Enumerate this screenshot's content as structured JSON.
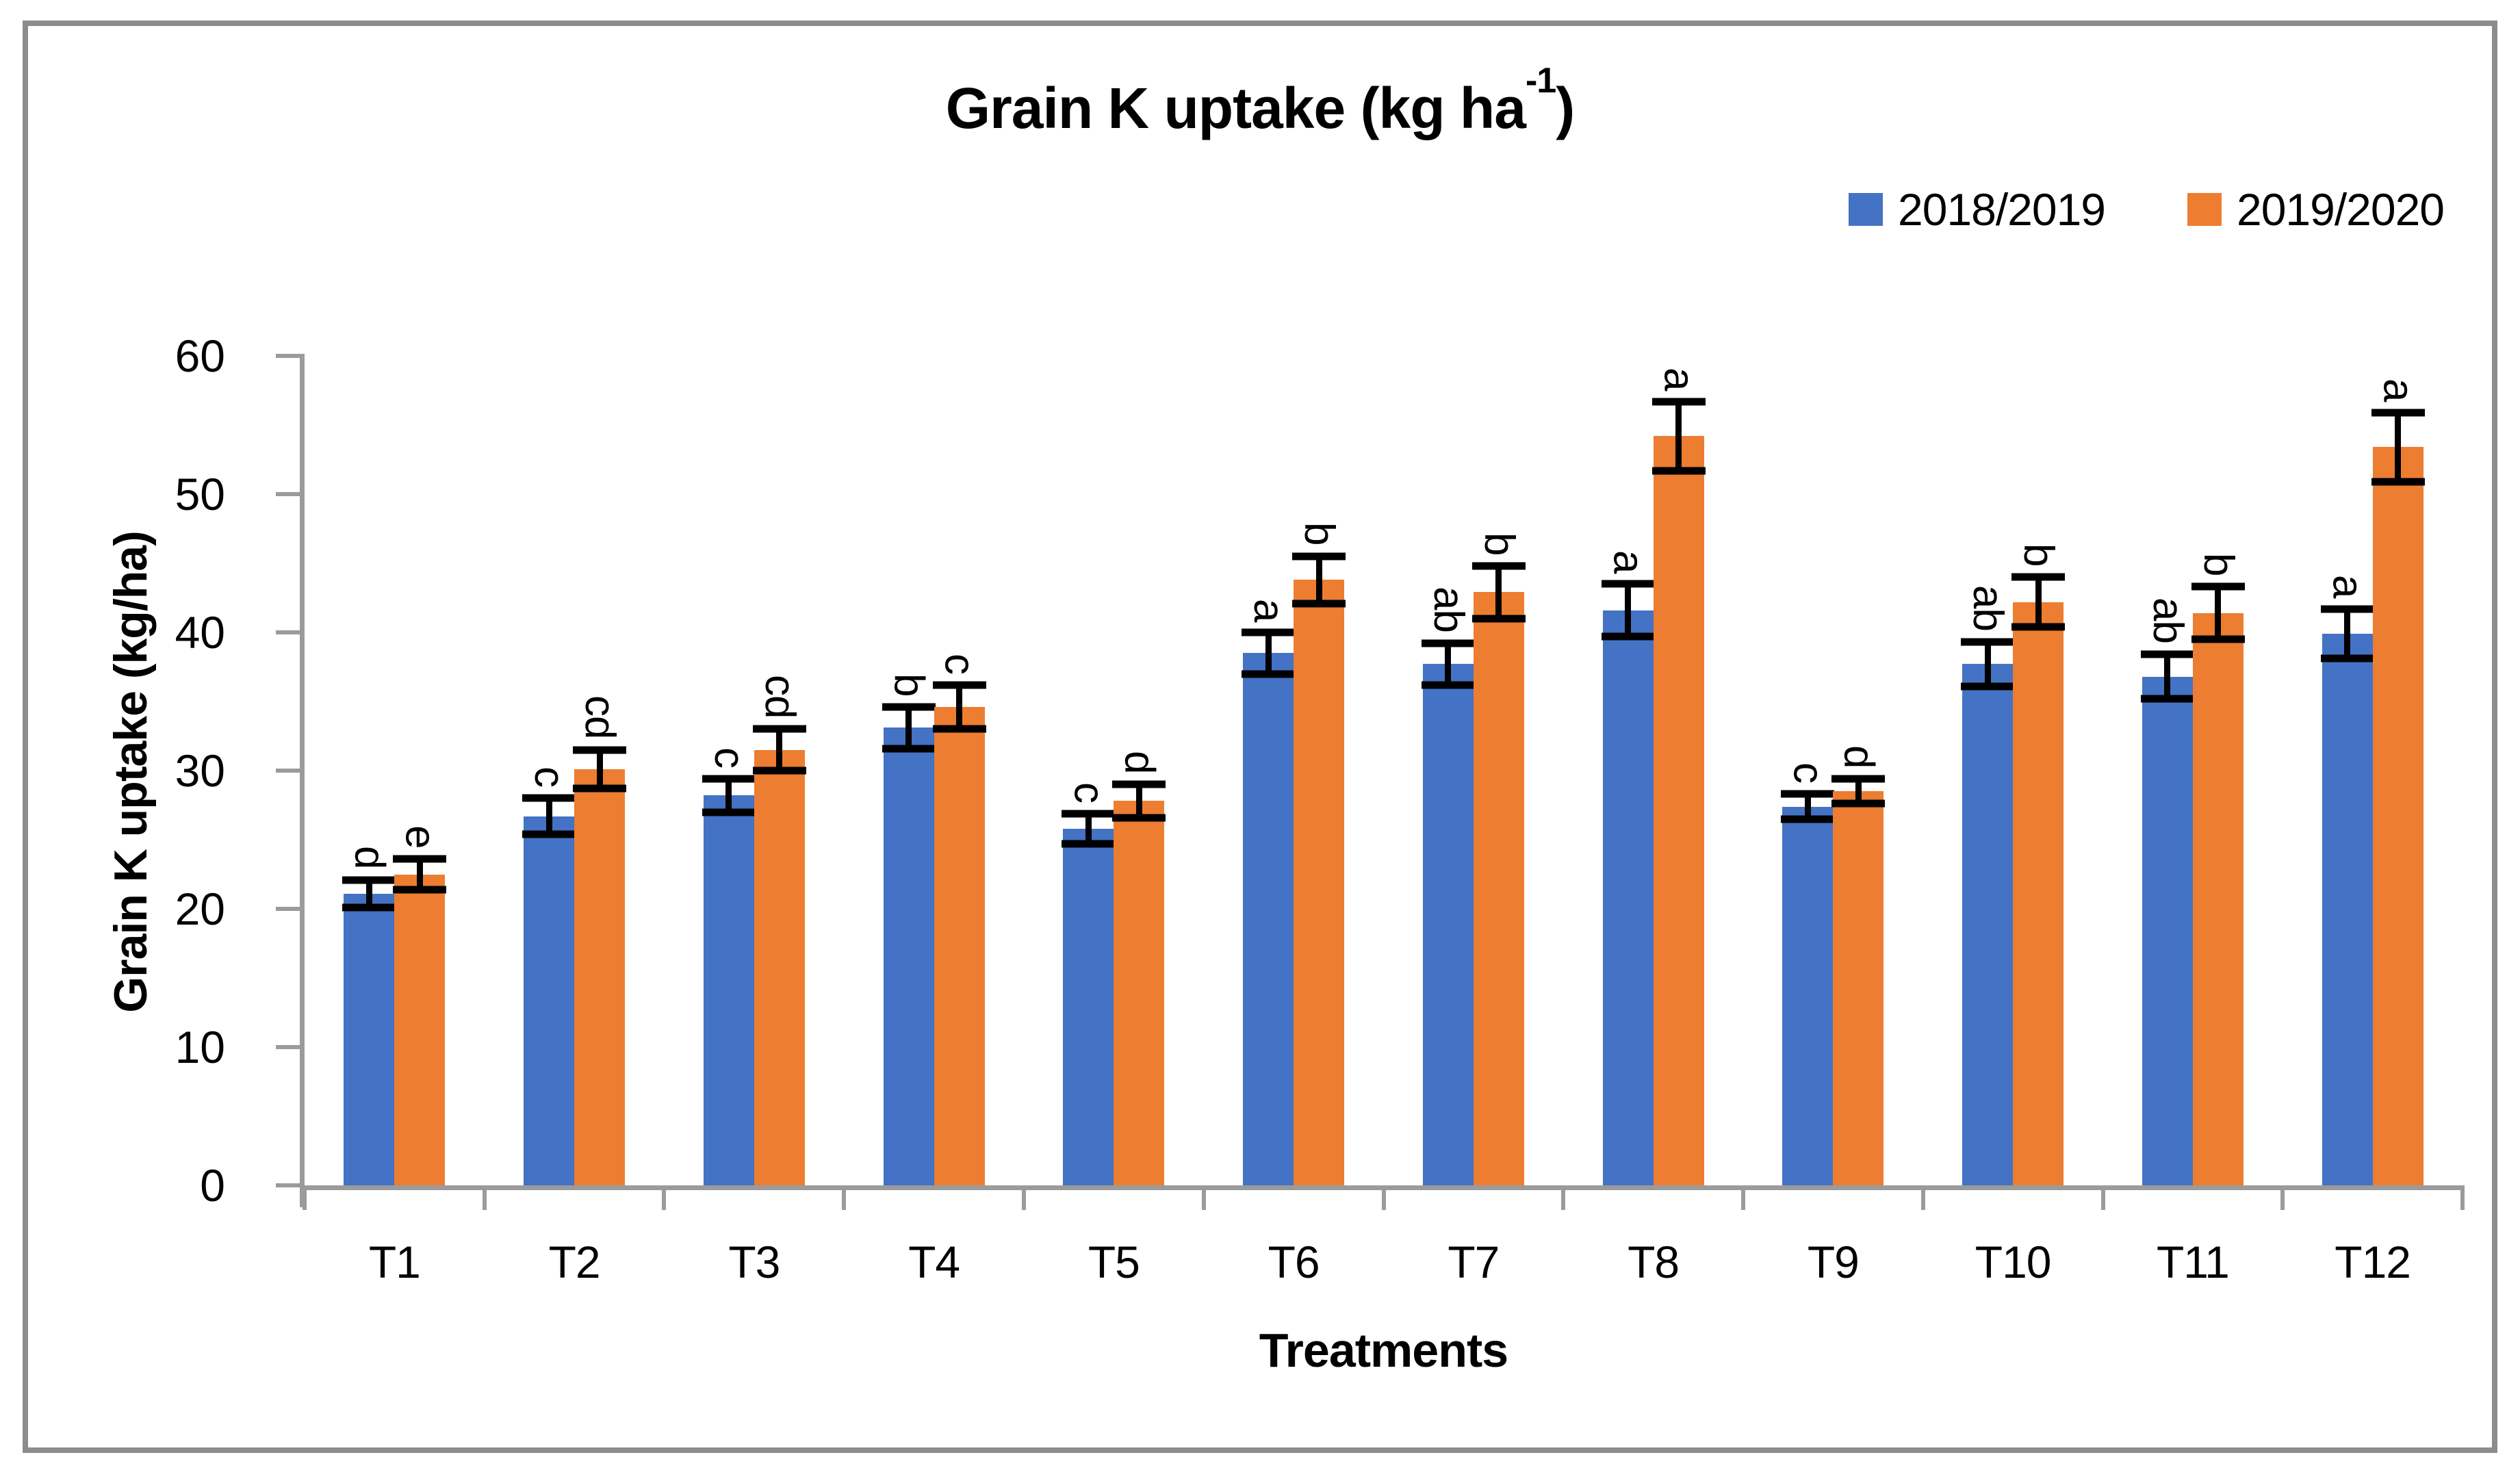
{
  "figure": {
    "title_main": "Grain K uptake (kg ha",
    "title_sup": "-1",
    "title_end": ")"
  },
  "chart_data": {
    "type": "bar",
    "title": "Grain K uptake (kg ha-1)",
    "categories": [
      "T1",
      "T2",
      "T3",
      "T4",
      "T5",
      "T6",
      "T7",
      "T8",
      "T9",
      "T10",
      "T11",
      "T12"
    ],
    "series": [
      {
        "name": "2018/2019",
        "color": "#4472C4",
        "values": [
          21.1,
          26.7,
          28.2,
          33.1,
          25.8,
          38.5,
          37.7,
          41.6,
          27.4,
          37.7,
          36.8,
          39.9
        ],
        "errors": [
          1.0,
          1.3,
          1.2,
          1.5,
          1.1,
          1.5,
          1.5,
          1.9,
          0.9,
          1.6,
          1.6,
          1.8
        ],
        "letters": [
          "d",
          "c",
          "c",
          "b",
          "c",
          "a",
          "ab",
          "a",
          "c",
          "ab",
          "ab",
          "a"
        ]
      },
      {
        "name": "2019/2020",
        "color": "#ED7D31",
        "values": [
          22.5,
          30.1,
          31.5,
          34.6,
          27.8,
          43.8,
          42.9,
          54.2,
          28.5,
          42.2,
          41.4,
          53.4
        ],
        "errors": [
          1.1,
          1.4,
          1.5,
          1.6,
          1.2,
          1.7,
          1.9,
          2.5,
          0.9,
          1.8,
          1.9,
          2.5
        ],
        "letters": [
          "e",
          "cd",
          "cd",
          "c",
          "d",
          "b",
          "b",
          "a",
          "d",
          "b",
          "b",
          "a"
        ]
      }
    ],
    "xlabel": "Treatments",
    "ylabel": "Grain K uptake (kg/ha)",
    "ylim": [
      0,
      60
    ],
    "yticks": [
      0,
      10,
      20,
      30,
      40,
      50,
      60
    ],
    "error_bars": true,
    "grid": false,
    "legend_position": "top-right"
  },
  "colors": {
    "axis": "#9b9b9b",
    "frame_border": "#8c8c8c",
    "text": "#000000",
    "background": "#ffffff",
    "series_blue": "#4472C4",
    "series_orange": "#ED7D31"
  }
}
